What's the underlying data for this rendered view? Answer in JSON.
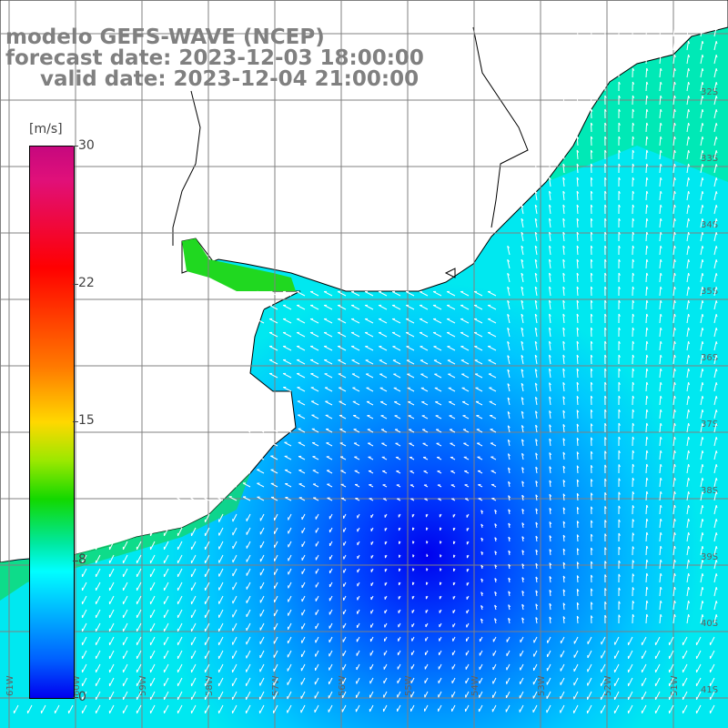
{
  "titles": {
    "line1": "modelo GEFS-WAVE (NCEP)",
    "line2": "forecast date: 2023-12-03 18:00:00",
    "line3": "valid date: 2023-12-04 21:00:00"
  },
  "colorbar": {
    "unit": "[m/s]",
    "ticks": [
      {
        "label": "30",
        "value": 30
      },
      {
        "label": "22",
        "value": 22
      },
      {
        "label": "15",
        "value": 15
      },
      {
        "label": "8",
        "value": 8
      },
      {
        "label": "0",
        "value": 0
      }
    ],
    "range": [
      0,
      30
    ],
    "colors": [
      "#0000f0",
      "#0060ff",
      "#00b0ff",
      "#00ffff",
      "#00e8a0",
      "#12d800",
      "#9be800",
      "#ffd800",
      "#ff7a00",
      "#ff0000",
      "#e0107a",
      "#c6087e"
    ]
  },
  "map": {
    "lat_labels": [
      "32S",
      "33S",
      "34S",
      "35S",
      "36S",
      "37S",
      "38S",
      "39S",
      "40S",
      "41S"
    ],
    "lon_labels": [
      "61W",
      "60W",
      "59W",
      "58W",
      "57W",
      "56W",
      "55W",
      "54W",
      "53W",
      "52W",
      "51W"
    ],
    "land_color": "#ffffff",
    "field": "wind speed and direction (arrows)"
  }
}
